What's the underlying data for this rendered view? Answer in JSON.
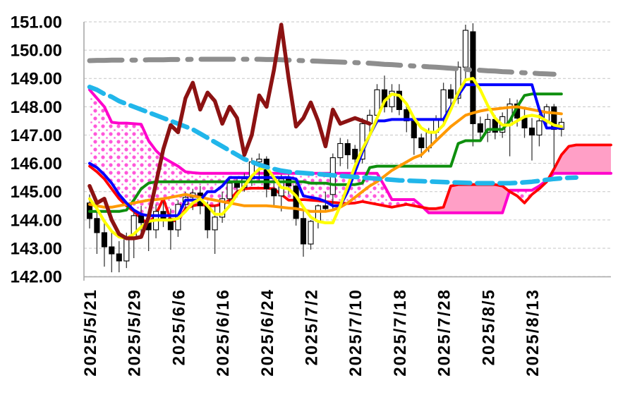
{
  "app": {
    "title": "Daily candlestick chart with Ichimoku cloud and moving averages, 142.00-151.00 price scale, 2025/5/21 to 2025/8/13"
  },
  "chart_data": {
    "type": "candlestick",
    "title": "",
    "xlabel": "",
    "ylabel": "",
    "ylim": [
      142,
      151
    ],
    "grid": "horizontal-dashed",
    "legend": "none",
    "style": {
      "background": "#ffffff",
      "grid_color": "#c6c6c6",
      "axis_color": "#a8a8a8",
      "label_color": "#000000",
      "candle_up_fill": "#ffffff",
      "candle_down_fill": "#000000",
      "candle_stroke": "#000000",
      "wick_color": "#3a3a3a",
      "cloud_bull_fill": "dotted-magenta",
      "cloud_bull_dot_color": "#ff3bd4",
      "cloud_bear_fill": "#ff9fc6"
    },
    "y_ticks": [
      {
        "value": 151,
        "label": "151.00"
      },
      {
        "value": 150,
        "label": "150.00"
      },
      {
        "value": 149,
        "label": "149.00"
      },
      {
        "value": 148,
        "label": "148.00"
      },
      {
        "value": 147,
        "label": "147.00"
      },
      {
        "value": 146,
        "label": "146.00"
      },
      {
        "value": 145,
        "label": "145.00"
      },
      {
        "value": 144,
        "label": "144.00"
      },
      {
        "value": 143,
        "label": "143.00"
      },
      {
        "value": 142,
        "label": "142.00"
      }
    ],
    "x_ticks": [
      {
        "bar": 0,
        "label": "2025/5/21"
      },
      {
        "bar": 6,
        "label": "2025/5/29"
      },
      {
        "bar": 12,
        "label": "2025/6/6"
      },
      {
        "bar": 18,
        "label": "2025/6/16"
      },
      {
        "bar": 24,
        "label": "2025/6/24"
      },
      {
        "bar": 30,
        "label": "2025/7/2"
      },
      {
        "bar": 36,
        "label": "2025/7/10"
      },
      {
        "bar": 42,
        "label": "2025/7/18"
      },
      {
        "bar": 48,
        "label": "2025/7/28"
      },
      {
        "bar": 54,
        "label": "2025/8/5"
      },
      {
        "bar": 60,
        "label": "2025/8/13"
      }
    ],
    "candles": [
      [
        144.6,
        144.9,
        143.7,
        144.05
      ],
      [
        144.05,
        144.35,
        142.8,
        143.55
      ],
      [
        143.55,
        143.95,
        142.35,
        143.05
      ],
      [
        143.05,
        143.6,
        142.15,
        142.8
      ],
      [
        142.8,
        143.25,
        142.15,
        142.55
      ],
      [
        142.55,
        143.55,
        142.3,
        143.35
      ],
      [
        143.35,
        144.4,
        142.65,
        144.15
      ],
      [
        144.15,
        144.5,
        143.5,
        143.9
      ],
      [
        143.9,
        144.2,
        142.9,
        143.65
      ],
      [
        143.65,
        144.55,
        143.35,
        144.3
      ],
      [
        144.3,
        144.65,
        143.75,
        144.05
      ],
      [
        144.05,
        144.4,
        142.95,
        143.65
      ],
      [
        143.65,
        144.7,
        143.4,
        144.55
      ],
      [
        144.55,
        145.0,
        144.3,
        144.8
      ],
      [
        144.8,
        145.1,
        144.35,
        144.95
      ],
      [
        144.95,
        145.2,
        144.2,
        144.5
      ],
      [
        144.5,
        144.65,
        143.35,
        143.65
      ],
      [
        143.65,
        144.5,
        142.8,
        144.1
      ],
      [
        144.1,
        145.0,
        143.9,
        144.75
      ],
      [
        144.75,
        145.45,
        144.5,
        145.3
      ],
      [
        145.3,
        145.5,
        144.8,
        145.15
      ],
      [
        145.15,
        145.65,
        145.0,
        145.45
      ],
      [
        145.45,
        146.2,
        145.2,
        146.05
      ],
      [
        146.05,
        146.35,
        145.4,
        146.15
      ],
      [
        146.15,
        146.25,
        144.8,
        145.1
      ],
      [
        145.1,
        145.3,
        144.5,
        144.85
      ],
      [
        144.85,
        145.6,
        144.3,
        145.45
      ],
      [
        145.45,
        145.6,
        144.9,
        145.2
      ],
      [
        145.2,
        145.35,
        143.8,
        144.05
      ],
      [
        144.05,
        144.3,
        142.7,
        143.15
      ],
      [
        143.15,
        144.0,
        142.95,
        143.95
      ],
      [
        143.95,
        144.55,
        143.7,
        144.5
      ],
      [
        144.5,
        145.0,
        144.3,
        144.4
      ],
      [
        144.9,
        146.35,
        144.4,
        146.2
      ],
      [
        146.2,
        146.9,
        145.9,
        146.7
      ],
      [
        146.7,
        146.85,
        145.8,
        146.3
      ],
      [
        146.5,
        146.65,
        145.7,
        146.15
      ],
      [
        146.15,
        147.6,
        146.0,
        147.4
      ],
      [
        147.4,
        147.9,
        147.0,
        147.7
      ],
      [
        147.7,
        148.8,
        147.4,
        148.6
      ],
      [
        148.6,
        149.1,
        147.8,
        148.0
      ],
      [
        148.0,
        148.8,
        147.8,
        148.55
      ],
      [
        148.55,
        148.8,
        147.7,
        147.9
      ],
      [
        147.9,
        148.1,
        147.1,
        147.5
      ],
      [
        147.5,
        147.6,
        146.3,
        146.9
      ],
      [
        146.9,
        147.05,
        146.2,
        146.55
      ],
      [
        146.55,
        147.25,
        146.4,
        147.1
      ],
      [
        147.1,
        147.7,
        146.8,
        147.55
      ],
      [
        147.55,
        148.85,
        147.3,
        148.6
      ],
      [
        148.6,
        148.8,
        148.0,
        148.3
      ],
      [
        148.3,
        149.6,
        148.1,
        149.4
      ],
      [
        149.4,
        150.9,
        148.9,
        150.7
      ],
      [
        150.65,
        150.95,
        146.6,
        147.4
      ],
      [
        147.4,
        147.65,
        146.85,
        147.1
      ],
      [
        147.1,
        147.75,
        146.75,
        147.55
      ],
      [
        147.55,
        147.7,
        146.85,
        147.1
      ],
      [
        147.1,
        147.8,
        146.9,
        147.65
      ],
      [
        147.35,
        148.3,
        146.25,
        148.1
      ],
      [
        148.1,
        148.25,
        147.3,
        147.6
      ],
      [
        147.6,
        147.95,
        146.9,
        147.25
      ],
      [
        147.25,
        147.6,
        146.1,
        147.0
      ],
      [
        147.0,
        147.75,
        146.6,
        147.5
      ],
      [
        147.5,
        148.1,
        147.2,
        148.0
      ],
      [
        148.0,
        148.1,
        145.85,
        147.2
      ],
      [
        147.2,
        147.6,
        146.95,
        147.45
      ]
    ],
    "series": {
      "senkou_a": {
        "label": "cloud edge A (magenta)",
        "color": "#ff00cc",
        "width": 4,
        "dash": "",
        "extend_to_right": true,
        "values": [
          148.6,
          148.3,
          148.0,
          147.45,
          147.42,
          147.42,
          147.4,
          147.38,
          146.8,
          146.45,
          146.2,
          146.05,
          145.9,
          145.7,
          145.67,
          145.65,
          145.65,
          145.65,
          145.65,
          145.65,
          145.65,
          145.65,
          145.65,
          145.65,
          145.65,
          145.65,
          145.65,
          145.65,
          145.65,
          145.65,
          145.65,
          145.65,
          145.65,
          145.65,
          145.65,
          145.65,
          145.65,
          145.65,
          145.65,
          145.65,
          145.2,
          144.72,
          144.72,
          144.72,
          144.72,
          144.5,
          144.25,
          144.25,
          144.25,
          144.25,
          144.25,
          144.25,
          144.25,
          144.25,
          144.25,
          144.25,
          144.25,
          145.05,
          145.05,
          145.05,
          145.05,
          145.2,
          145.4,
          145.65,
          145.65,
          145.65,
          145.65,
          145.65,
          145.65,
          145.65,
          145.65
        ]
      },
      "senkou_b": {
        "label": "cloud edge B (red)",
        "color": "#ff0000",
        "width": 3.8,
        "dash": "",
        "extend_to_right": true,
        "values": [
          145.9,
          145.7,
          145.45,
          145.1,
          144.75,
          144.5,
          144.3,
          144.05,
          143.85,
          144.2,
          144.75,
          144.0,
          143.95,
          144.4,
          144.5,
          144.55,
          144.5,
          144.5,
          144.55,
          144.7,
          145.0,
          145.1,
          145.12,
          145.12,
          145.12,
          145.1,
          144.9,
          144.7,
          144.7,
          144.72,
          144.7,
          144.68,
          144.65,
          144.62,
          144.6,
          144.58,
          144.6,
          144.65,
          144.6,
          144.55,
          144.5,
          144.45,
          144.5,
          144.55,
          144.5,
          144.45,
          144.4,
          144.4,
          144.45,
          145.2,
          145.25,
          145.25,
          145.25,
          145.25,
          145.25,
          145.25,
          145.2,
          145.0,
          144.85,
          144.6,
          144.9,
          145.1,
          145.35,
          145.8,
          146.3,
          146.6,
          146.65,
          146.65,
          146.65,
          146.65,
          146.65
        ]
      },
      "ma_slow_green": {
        "label": "long moving average (green)",
        "color": "#0e8f0e",
        "width": 4,
        "dash": "",
        "extend_to_right": false,
        "values": [
          144.3,
          144.3,
          144.3,
          144.3,
          144.3,
          144.35,
          144.7,
          145.1,
          145.3,
          145.35,
          145.35,
          145.35,
          145.35,
          145.35,
          145.35,
          145.35,
          145.35,
          145.35,
          145.35,
          145.35,
          145.35,
          145.35,
          145.35,
          145.35,
          145.35,
          145.35,
          145.35,
          145.35,
          145.35,
          145.35,
          145.3,
          145.3,
          145.3,
          145.25,
          145.25,
          145.25,
          145.25,
          145.3,
          145.85,
          145.9,
          145.9,
          145.9,
          145.9,
          145.9,
          145.9,
          145.9,
          145.9,
          145.9,
          145.9,
          145.9,
          146.7,
          146.8,
          146.8,
          146.8,
          147.2,
          147.2,
          147.2,
          147.5,
          148.0,
          148.4,
          148.45,
          148.45,
          148.45,
          148.45,
          148.45
        ]
      },
      "ma_mid_orange": {
        "label": "medium moving average (orange)",
        "color": "#ff9900",
        "width": 4,
        "dash": "",
        "extend_to_right": false,
        "values": [
          144.55,
          144.5,
          144.45,
          144.45,
          144.5,
          144.55,
          144.6,
          144.65,
          144.7,
          144.72,
          144.75,
          144.8,
          144.85,
          144.9,
          144.85,
          144.8,
          144.75,
          144.7,
          144.65,
          144.6,
          144.55,
          144.5,
          144.5,
          144.5,
          144.5,
          144.48,
          144.45,
          144.42,
          144.4,
          144.35,
          144.3,
          144.3,
          144.3,
          144.35,
          144.45,
          144.6,
          144.8,
          145.0,
          145.2,
          145.35,
          145.55,
          145.75,
          145.9,
          146.05,
          146.2,
          146.3,
          146.55,
          146.8,
          147.05,
          147.3,
          147.5,
          147.7,
          147.78,
          147.85,
          147.9,
          147.92,
          147.95,
          147.98,
          148.0,
          147.95,
          147.9,
          147.85,
          147.8,
          147.78,
          147.75
        ]
      },
      "kijun_blue": {
        "label": "base line (blue)",
        "color": "#0000ff",
        "width": 4,
        "dash": "",
        "extend_to_right": false,
        "values": [
          146.0,
          145.85,
          145.6,
          145.3,
          144.9,
          144.6,
          144.35,
          144.2,
          144.15,
          144.15,
          144.15,
          144.15,
          144.15,
          144.7,
          144.7,
          144.7,
          145.0,
          145.0,
          145.2,
          145.5,
          145.5,
          145.5,
          145.5,
          145.5,
          145.5,
          145.5,
          145.5,
          145.5,
          145.45,
          144.85,
          144.8,
          144.75,
          144.65,
          144.5,
          144.5,
          145.0,
          145.7,
          146.4,
          147.0,
          147.5,
          147.5,
          147.55,
          147.55,
          147.55,
          147.55,
          147.55,
          147.55,
          147.55,
          147.55,
          148.0,
          148.4,
          148.78,
          148.78,
          148.78,
          148.78,
          148.78,
          148.78,
          148.78,
          148.78,
          148.78,
          148.78,
          147.9,
          147.25,
          147.25,
          147.25
        ]
      },
      "ma_fast_yellow": {
        "label": "fast moving average (yellow)",
        "color": "#ffff00",
        "width": 4.2,
        "dash": "",
        "extend_to_right": false,
        "values": [
          144.75,
          144.4,
          143.95,
          143.6,
          143.4,
          143.35,
          143.5,
          143.75,
          143.95,
          144.0,
          144.0,
          144.0,
          144.05,
          144.3,
          144.6,
          144.75,
          144.5,
          144.2,
          144.2,
          144.5,
          144.9,
          145.2,
          145.55,
          145.8,
          145.85,
          145.5,
          145.15,
          145.1,
          144.85,
          144.45,
          144.1,
          143.95,
          143.9,
          143.9,
          144.5,
          145.2,
          145.9,
          146.5,
          147.0,
          147.6,
          148.2,
          148.45,
          148.4,
          148.1,
          147.6,
          147.25,
          147.1,
          147.1,
          147.35,
          147.9,
          148.5,
          148.95,
          149.0,
          148.6,
          148.05,
          147.6,
          147.35,
          147.35,
          147.5,
          147.65,
          147.7,
          147.65,
          147.5,
          147.35,
          147.3
        ]
      },
      "ma_gray_dashdot": {
        "label": "long-term line (gray dash-dot)",
        "color": "#8e8e8e",
        "width": 7,
        "dash": "46 14 5 14",
        "extend_to_right": false,
        "values": [
          149.63,
          149.64,
          149.64,
          149.65,
          149.65,
          149.65,
          149.65,
          149.65,
          149.66,
          149.66,
          149.66,
          149.67,
          149.67,
          149.67,
          149.68,
          149.68,
          149.68,
          149.68,
          149.68,
          149.68,
          149.68,
          149.68,
          149.68,
          149.68,
          149.67,
          149.67,
          149.66,
          149.65,
          149.64,
          149.63,
          149.62,
          149.61,
          149.6,
          149.59,
          149.58,
          149.57,
          149.56,
          149.55,
          149.54,
          149.52,
          149.5,
          149.49,
          149.47,
          149.46,
          149.44,
          149.43,
          149.41,
          149.4,
          149.38,
          149.36,
          149.34,
          149.32,
          149.3,
          149.29,
          149.27,
          149.26,
          149.24,
          149.23,
          149.21,
          149.2,
          149.19,
          149.17,
          149.16,
          149.15
        ]
      },
      "ma_cyan_dashed": {
        "label": "trend line (cyan dashed)",
        "color": "#21b6ea",
        "width": 6.5,
        "dash": "22 10",
        "extend_to_right": false,
        "values": [
          148.7,
          148.6,
          148.45,
          148.35,
          148.2,
          148.1,
          148.0,
          147.9,
          147.8,
          147.7,
          147.6,
          147.5,
          147.4,
          147.3,
          147.2,
          147.05,
          146.9,
          146.75,
          146.6,
          146.45,
          146.3,
          146.15,
          146.05,
          145.95,
          145.87,
          145.8,
          145.74,
          145.7,
          145.68,
          145.66,
          145.64,
          145.62,
          145.6,
          145.58,
          145.56,
          145.54,
          145.52,
          145.5,
          145.48,
          145.46,
          145.44,
          145.42,
          145.4,
          145.39,
          145.38,
          145.37,
          145.36,
          145.35,
          145.34,
          145.33,
          145.32,
          145.31,
          145.3,
          145.3,
          145.3,
          145.3,
          145.3,
          145.3,
          145.31,
          145.33,
          145.35,
          145.38,
          145.42,
          145.45,
          145.47,
          145.49,
          145.5
        ]
      },
      "chikou_darkred": {
        "label": "lagging line (dark red)",
        "color": "#8c1212",
        "width": 5.5,
        "dash": "",
        "extend_to_right": false,
        "values": [
          145.2,
          144.6,
          144.75,
          144.0,
          143.5,
          143.35,
          143.35,
          143.4,
          144.1,
          145.3,
          146.5,
          147.35,
          147.1,
          148.3,
          148.85,
          147.9,
          148.5,
          148.2,
          147.4,
          148.0,
          147.6,
          146.3,
          147.0,
          148.4,
          148.0,
          149.3,
          150.9,
          149.0,
          147.3,
          147.6,
          148.15,
          147.5,
          146.6,
          147.9,
          147.4,
          147.5,
          147.6,
          147.5,
          147.4
        ]
      }
    },
    "draw_order": [
      "ma_slow_green",
      "ma_mid_orange",
      "kijun_blue",
      "ma_fast_yellow",
      "ma_gray_dashdot",
      "ma_cyan_dashed",
      "chikou_darkred"
    ]
  }
}
